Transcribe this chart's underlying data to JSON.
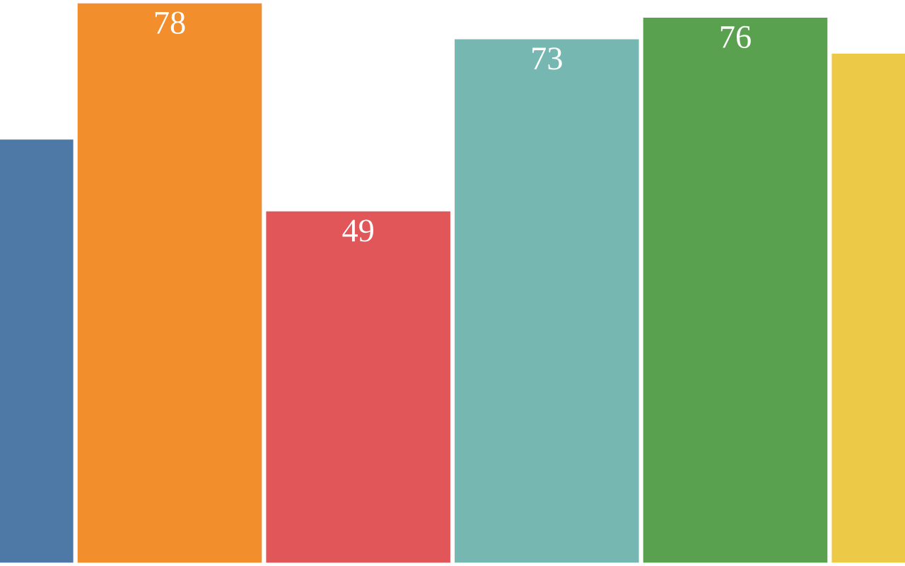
{
  "chart_data": {
    "type": "bar",
    "categories": [
      null,
      null,
      null,
      null,
      null,
      null
    ],
    "values": [
      59,
      78,
      49,
      73,
      76,
      71
    ],
    "colors": [
      "#4e79a7",
      "#f28e2b",
      "#e15759",
      "#76b7b2",
      "#59a14f",
      "#edc948"
    ],
    "value_labels": [
      null,
      "78",
      "49",
      "73",
      "76",
      null
    ]
  }
}
